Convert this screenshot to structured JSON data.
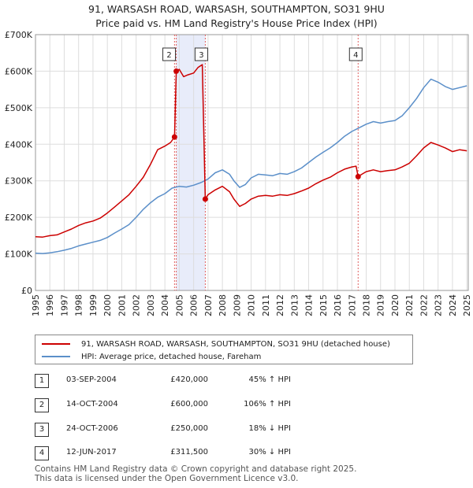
{
  "title": "91, WARSASH ROAD, WARSASH, SOUTHAMPTON, SO31 9HU",
  "subtitle": "Price paid vs. HM Land Registry's House Price Index (HPI)",
  "colors": {
    "property": "#cc0000",
    "hpi": "#5b8fc9",
    "shade": "#e8ecfa",
    "grid": "#dddddd",
    "vline": "#e06060"
  },
  "chart_data": {
    "type": "line",
    "title": "91, WARSASH ROAD, WARSASH, SOUTHAMPTON, SO31 9HU",
    "subtitle": "Price paid vs. HM Land Registry's House Price Index (HPI)",
    "xlim": [
      1995,
      2025.1
    ],
    "ylim": [
      0,
      700000
    ],
    "grid": true,
    "x_ticks": [
      1995,
      1996,
      1997,
      1998,
      1999,
      2000,
      2001,
      2002,
      2003,
      2004,
      2005,
      2006,
      2007,
      2008,
      2009,
      2010,
      2011,
      2012,
      2013,
      2014,
      2015,
      2016,
      2017,
      2018,
      2019,
      2020,
      2021,
      2022,
      2023,
      2024,
      2025
    ],
    "x_tick_labels": [
      "1995",
      "1996",
      "1997",
      "1998",
      "1999",
      "2000",
      "2001",
      "2002",
      "2003",
      "2004",
      "2005",
      "2006",
      "2007",
      "2008",
      "2009",
      "2010",
      "2011",
      "2012",
      "2013",
      "2014",
      "2015",
      "2016",
      "2017",
      "2018",
      "2019",
      "2020",
      "2021",
      "2022",
      "2023",
      "2024",
      "2025"
    ],
    "y_ticks": [
      0,
      100000,
      200000,
      300000,
      400000,
      500000,
      600000,
      700000
    ],
    "y_tick_labels": [
      "£0",
      "£100K",
      "£200K",
      "£300K",
      "£400K",
      "£500K",
      "£600K",
      "£700K"
    ],
    "shaded_region": [
      2004.79,
      2006.81
    ],
    "series": [
      {
        "name": "91, WARSASH ROAD, WARSASH, SOUTHAMPTON, SO31 9HU (detached house)",
        "color": "#cc0000",
        "points": [
          [
            1995.0,
            147000
          ],
          [
            1995.5,
            146000
          ],
          [
            1996.0,
            150000
          ],
          [
            1996.5,
            152000
          ],
          [
            1997.0,
            160000
          ],
          [
            1997.5,
            168000
          ],
          [
            1998.0,
            178000
          ],
          [
            1998.5,
            185000
          ],
          [
            1999.0,
            190000
          ],
          [
            1999.5,
            198000
          ],
          [
            2000.0,
            212000
          ],
          [
            2000.5,
            228000
          ],
          [
            2001.0,
            245000
          ],
          [
            2001.5,
            262000
          ],
          [
            2002.0,
            285000
          ],
          [
            2002.5,
            310000
          ],
          [
            2003.0,
            345000
          ],
          [
            2003.5,
            385000
          ],
          [
            2004.0,
            395000
          ],
          [
            2004.4,
            405000
          ],
          [
            2004.67,
            420000
          ],
          [
            2004.79,
            600000
          ],
          [
            2005.0,
            605000
          ],
          [
            2005.3,
            585000
          ],
          [
            2005.6,
            590000
          ],
          [
            2006.0,
            595000
          ],
          [
            2006.3,
            610000
          ],
          [
            2006.6,
            618000
          ],
          [
            2006.81,
            250000
          ],
          [
            2007.0,
            262000
          ],
          [
            2007.5,
            275000
          ],
          [
            2008.0,
            285000
          ],
          [
            2008.5,
            270000
          ],
          [
            2008.8,
            250000
          ],
          [
            2009.2,
            230000
          ],
          [
            2009.6,
            238000
          ],
          [
            2010.0,
            250000
          ],
          [
            2010.5,
            258000
          ],
          [
            2011.0,
            260000
          ],
          [
            2011.5,
            258000
          ],
          [
            2012.0,
            262000
          ],
          [
            2012.5,
            260000
          ],
          [
            2013.0,
            265000
          ],
          [
            2013.5,
            272000
          ],
          [
            2014.0,
            280000
          ],
          [
            2014.5,
            292000
          ],
          [
            2015.0,
            302000
          ],
          [
            2015.5,
            310000
          ],
          [
            2016.0,
            322000
          ],
          [
            2016.5,
            332000
          ],
          [
            2017.0,
            338000
          ],
          [
            2017.3,
            340000
          ],
          [
            2017.44,
            311500
          ],
          [
            2017.7,
            318000
          ],
          [
            2018.0,
            325000
          ],
          [
            2018.5,
            330000
          ],
          [
            2019.0,
            325000
          ],
          [
            2019.5,
            328000
          ],
          [
            2020.0,
            330000
          ],
          [
            2020.5,
            338000
          ],
          [
            2021.0,
            348000
          ],
          [
            2021.5,
            368000
          ],
          [
            2022.0,
            390000
          ],
          [
            2022.5,
            405000
          ],
          [
            2023.0,
            398000
          ],
          [
            2023.5,
            390000
          ],
          [
            2024.0,
            380000
          ],
          [
            2024.5,
            385000
          ],
          [
            2025.0,
            382000
          ]
        ]
      },
      {
        "name": "HPI: Average price, detached house, Fareham",
        "color": "#5b8fc9",
        "points": [
          [
            1995.0,
            102000
          ],
          [
            1995.5,
            101000
          ],
          [
            1996.0,
            103000
          ],
          [
            1996.5,
            106000
          ],
          [
            1997.0,
            110000
          ],
          [
            1997.5,
            115000
          ],
          [
            1998.0,
            122000
          ],
          [
            1998.5,
            127000
          ],
          [
            1999.0,
            132000
          ],
          [
            1999.5,
            137000
          ],
          [
            2000.0,
            145000
          ],
          [
            2000.5,
            157000
          ],
          [
            2001.0,
            168000
          ],
          [
            2001.5,
            180000
          ],
          [
            2002.0,
            200000
          ],
          [
            2002.5,
            222000
          ],
          [
            2003.0,
            240000
          ],
          [
            2003.5,
            255000
          ],
          [
            2004.0,
            265000
          ],
          [
            2004.5,
            280000
          ],
          [
            2005.0,
            285000
          ],
          [
            2005.5,
            283000
          ],
          [
            2006.0,
            288000
          ],
          [
            2006.5,
            295000
          ],
          [
            2007.0,
            305000
          ],
          [
            2007.5,
            322000
          ],
          [
            2008.0,
            330000
          ],
          [
            2008.5,
            318000
          ],
          [
            2008.8,
            300000
          ],
          [
            2009.2,
            282000
          ],
          [
            2009.6,
            290000
          ],
          [
            2010.0,
            308000
          ],
          [
            2010.5,
            318000
          ],
          [
            2011.0,
            316000
          ],
          [
            2011.5,
            314000
          ],
          [
            2012.0,
            320000
          ],
          [
            2012.5,
            318000
          ],
          [
            2013.0,
            325000
          ],
          [
            2013.5,
            335000
          ],
          [
            2014.0,
            350000
          ],
          [
            2014.5,
            365000
          ],
          [
            2015.0,
            378000
          ],
          [
            2015.5,
            390000
          ],
          [
            2016.0,
            405000
          ],
          [
            2016.5,
            422000
          ],
          [
            2017.0,
            435000
          ],
          [
            2017.5,
            445000
          ],
          [
            2018.0,
            455000
          ],
          [
            2018.5,
            462000
          ],
          [
            2019.0,
            458000
          ],
          [
            2019.5,
            462000
          ],
          [
            2020.0,
            465000
          ],
          [
            2020.5,
            478000
          ],
          [
            2021.0,
            500000
          ],
          [
            2021.5,
            525000
          ],
          [
            2022.0,
            555000
          ],
          [
            2022.5,
            578000
          ],
          [
            2023.0,
            570000
          ],
          [
            2023.5,
            558000
          ],
          [
            2024.0,
            550000
          ],
          [
            2024.5,
            555000
          ],
          [
            2025.0,
            560000
          ]
        ]
      }
    ],
    "markers": [
      {
        "label": "1",
        "x": 2004.67,
        "y": 420000
      },
      {
        "label": "2",
        "x": 2004.79,
        "y": 600000
      },
      {
        "label": "3",
        "x": 2006.81,
        "y": 250000
      },
      {
        "label": "4",
        "x": 2017.44,
        "y": 311500
      }
    ]
  },
  "legend": {
    "property": "91, WARSASH ROAD, WARSASH, SOUTHAMPTON, SO31 9HU (detached house)",
    "hpi": "HPI: Average price, detached house, Fareham"
  },
  "transactions": [
    {
      "num": "1",
      "date": "03-SEP-2004",
      "price": "£420,000",
      "hpi": "45% ↑ HPI"
    },
    {
      "num": "2",
      "date": "14-OCT-2004",
      "price": "£600,000",
      "hpi": "106% ↑ HPI"
    },
    {
      "num": "3",
      "date": "24-OCT-2006",
      "price": "£250,000",
      "hpi": "18% ↓ HPI"
    },
    {
      "num": "4",
      "date": "12-JUN-2017",
      "price": "£311,500",
      "hpi": "30% ↓ HPI"
    }
  ],
  "footer": {
    "line1": "Contains HM Land Registry data © Crown copyright and database right 2025.",
    "line2": "This data is licensed under the Open Government Licence v3.0."
  }
}
